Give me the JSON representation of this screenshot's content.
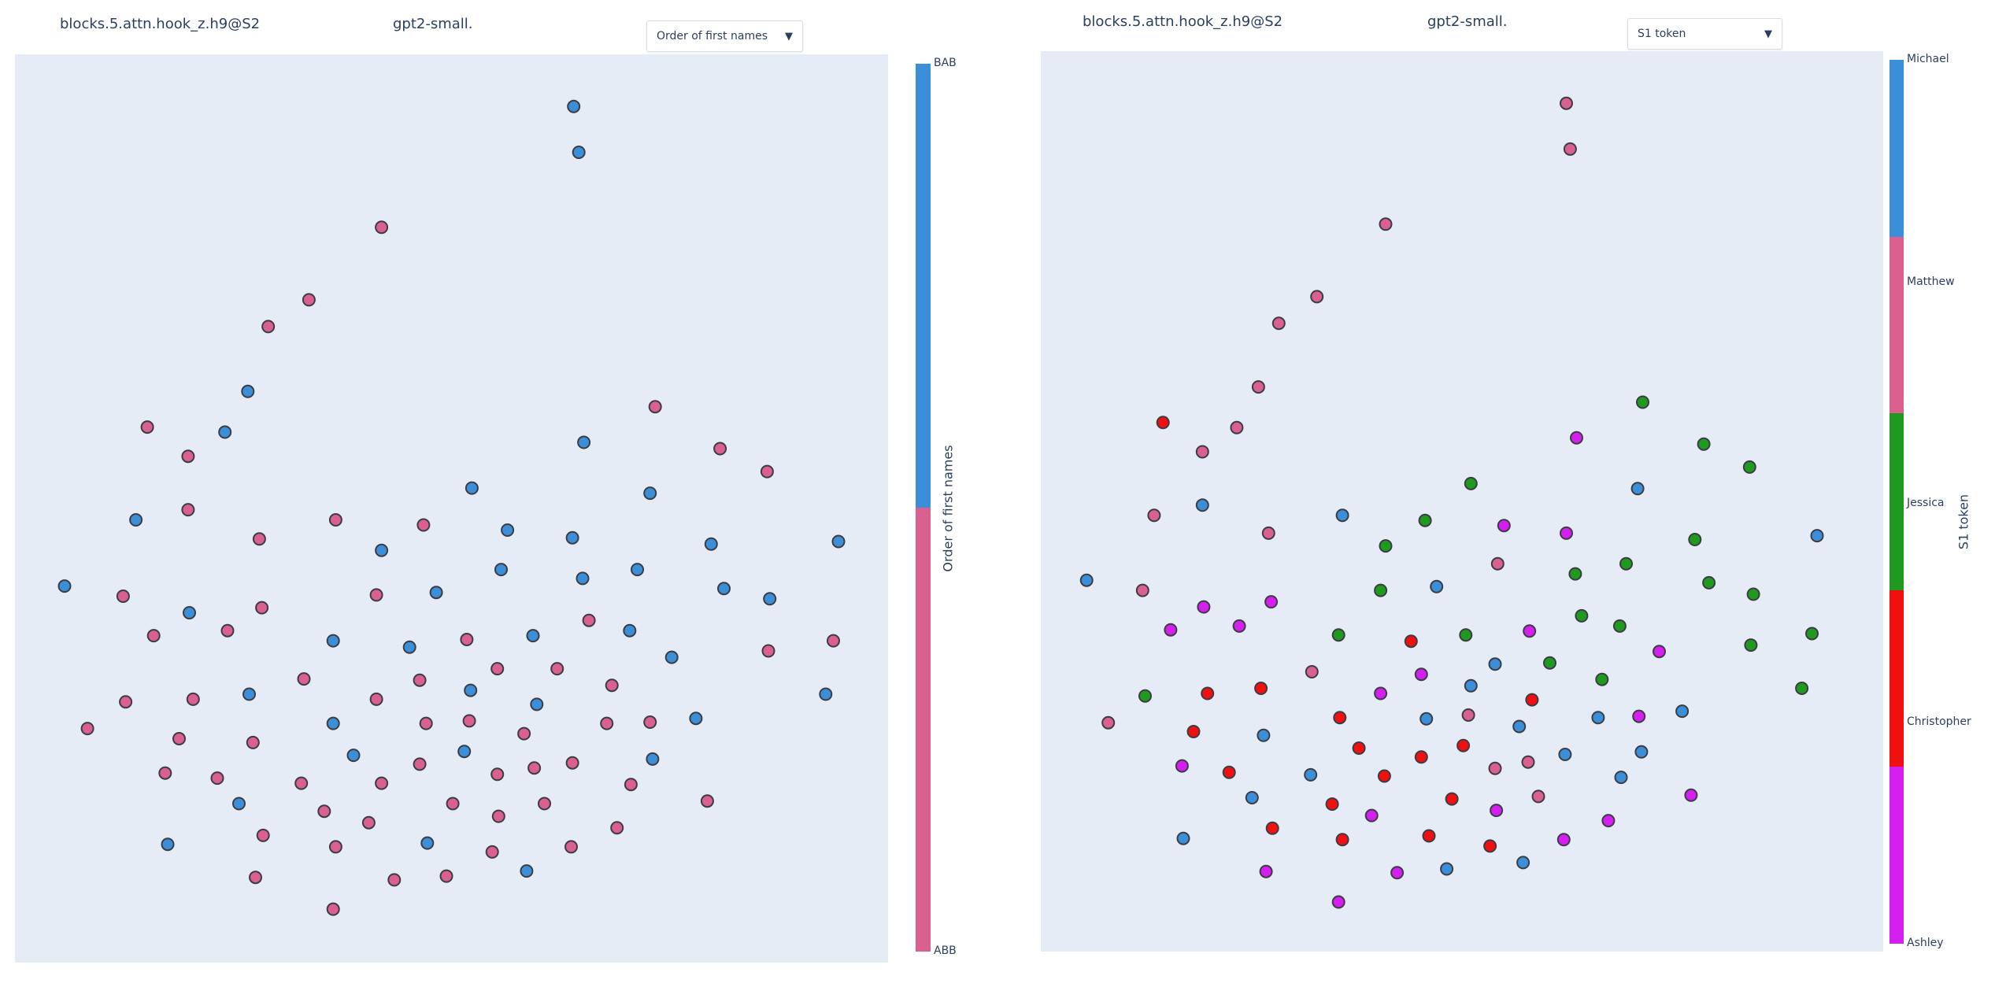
{
  "chart_data": [
    {
      "type": "scatter",
      "title": "blocks.5.attn.hook_z.h9@S2",
      "model": "gpt2-small.",
      "dropdown": {
        "selected": "Order of first names"
      },
      "colorbar": {
        "title": "Order of first names",
        "categories": [
          "BAB",
          "ABB"
        ],
        "colors": {
          "BAB": "#3b8fd9",
          "ABB": "#d9608f"
        }
      },
      "xlim": [
        12,
        698
      ],
      "ylim": [
        43,
        757
      ],
      "y_inverted": true,
      "grid": false,
      "points": [
        [
          451,
          84,
          "BAB"
        ],
        [
          455,
          120,
          "BAB"
        ],
        [
          300,
          179,
          "ABB"
        ],
        [
          243,
          236,
          "ABB"
        ],
        [
          211,
          257,
          "ABB"
        ],
        [
          195,
          308,
          "BAB"
        ],
        [
          116,
          336,
          "ABB"
        ],
        [
          177,
          340,
          "BAB"
        ],
        [
          148,
          359,
          "ABB"
        ],
        [
          515,
          320,
          "ABB"
        ],
        [
          459,
          348,
          "BAB"
        ],
        [
          566,
          353,
          "ABB"
        ],
        [
          603,
          371,
          "ABB"
        ],
        [
          371,
          384,
          "BAB"
        ],
        [
          511,
          388,
          "BAB"
        ],
        [
          107,
          409,
          "BAB"
        ],
        [
          148,
          401,
          "ABB"
        ],
        [
          264,
          409,
          "ABB"
        ],
        [
          333,
          413,
          "ABB"
        ],
        [
          399,
          417,
          "BAB"
        ],
        [
          204,
          424,
          "ABB"
        ],
        [
          300,
          433,
          "BAB"
        ],
        [
          450,
          423,
          "BAB"
        ],
        [
          559,
          428,
          "BAB"
        ],
        [
          659,
          426,
          "BAB"
        ],
        [
          394,
          448,
          "BAB"
        ],
        [
          501,
          448,
          "BAB"
        ],
        [
          458,
          455,
          "BAB"
        ],
        [
          51,
          461,
          "BAB"
        ],
        [
          97,
          469,
          "ABB"
        ],
        [
          296,
          468,
          "ABB"
        ],
        [
          343,
          466,
          "BAB"
        ],
        [
          569,
          463,
          "BAB"
        ],
        [
          605,
          471,
          "BAB"
        ],
        [
          149,
          482,
          "BAB"
        ],
        [
          206,
          478,
          "ABB"
        ],
        [
          121,
          500,
          "ABB"
        ],
        [
          179,
          496,
          "ABB"
        ],
        [
          463,
          488,
          "ABB"
        ],
        [
          495,
          496,
          "BAB"
        ],
        [
          262,
          504,
          "BAB"
        ],
        [
          322,
          509,
          "BAB"
        ],
        [
          367,
          503,
          "ABB"
        ],
        [
          419,
          500,
          "BAB"
        ],
        [
          604,
          512,
          "ABB"
        ],
        [
          655,
          504,
          "ABB"
        ],
        [
          528,
          517,
          "BAB"
        ],
        [
          391,
          526,
          "ABB"
        ],
        [
          438,
          526,
          "ABB"
        ],
        [
          239,
          534,
          "ABB"
        ],
        [
          330,
          535,
          "ABB"
        ],
        [
          481,
          539,
          "ABB"
        ],
        [
          196,
          546,
          "BAB"
        ],
        [
          152,
          550,
          "ABB"
        ],
        [
          99,
          552,
          "ABB"
        ],
        [
          296,
          550,
          "ABB"
        ],
        [
          370,
          543,
          "BAB"
        ],
        [
          422,
          554,
          "BAB"
        ],
        [
          649,
          546,
          "BAB"
        ],
        [
          547,
          565,
          "BAB"
        ],
        [
          69,
          573,
          "ABB"
        ],
        [
          262,
          569,
          "BAB"
        ],
        [
          335,
          569,
          "ABB"
        ],
        [
          369,
          567,
          "ABB"
        ],
        [
          477,
          569,
          "ABB"
        ],
        [
          511,
          568,
          "ABB"
        ],
        [
          141,
          581,
          "ABB"
        ],
        [
          199,
          584,
          "ABB"
        ],
        [
          412,
          577,
          "ABB"
        ],
        [
          278,
          594,
          "BAB"
        ],
        [
          365,
          591,
          "BAB"
        ],
        [
          450,
          600,
          "ABB"
        ],
        [
          513,
          597,
          "BAB"
        ],
        [
          330,
          601,
          "ABB"
        ],
        [
          420,
          604,
          "ABB"
        ],
        [
          130,
          608,
          "ABB"
        ],
        [
          171,
          612,
          "ABB"
        ],
        [
          237,
          616,
          "ABB"
        ],
        [
          300,
          616,
          "ABB"
        ],
        [
          391,
          609,
          "ABB"
        ],
        [
          496,
          617,
          "ABB"
        ],
        [
          188,
          632,
          "BAB"
        ],
        [
          356,
          632,
          "ABB"
        ],
        [
          428,
          632,
          "ABB"
        ],
        [
          556,
          630,
          "ABB"
        ],
        [
          255,
          638,
          "ABB"
        ],
        [
          392,
          642,
          "ABB"
        ],
        [
          290,
          647,
          "ABB"
        ],
        [
          207,
          657,
          "ABB"
        ],
        [
          485,
          651,
          "ABB"
        ],
        [
          132,
          664,
          "BAB"
        ],
        [
          264,
          666,
          "ABB"
        ],
        [
          336,
          663,
          "BAB"
        ],
        [
          387,
          670,
          "ABB"
        ],
        [
          449,
          666,
          "ABB"
        ],
        [
          414,
          685,
          "BAB"
        ],
        [
          201,
          690,
          "ABB"
        ],
        [
          310,
          692,
          "ABB"
        ],
        [
          351,
          689,
          "ABB"
        ],
        [
          262,
          715,
          "ABB"
        ]
      ]
    },
    {
      "type": "scatter",
      "title": "blocks.5.attn.hook_z.h9@S2",
      "model": "gpt2-small.",
      "dropdown": {
        "selected": "S1 token"
      },
      "colorbar": {
        "title": "S1 token",
        "categories": [
          "Michael",
          "Matthew",
          "Jessica",
          "Christopher",
          "Ashley"
        ],
        "colors": {
          "Michael": "#3b8fd9",
          "Matthew": "#d9608f",
          "Jessica": "#1f9a1f",
          "Christopher": "#f01010",
          "Ashley": "#d51ef0"
        }
      },
      "xlim": [
        818,
        1480
      ],
      "ylim": [
        40,
        748
      ],
      "y_inverted": true,
      "grid": false,
      "points": [
        [
          1231,
          81,
          "Matthew"
        ],
        [
          1234,
          117,
          "Matthew"
        ],
        [
          1089,
          176,
          "Matthew"
        ],
        [
          1035,
          233,
          "Matthew"
        ],
        [
          1005,
          254,
          "Matthew"
        ],
        [
          989,
          304,
          "Matthew"
        ],
        [
          914,
          332,
          "Christopher"
        ],
        [
          972,
          336,
          "Matthew"
        ],
        [
          945,
          355,
          "Matthew"
        ],
        [
          1291,
          316,
          "Jessica"
        ],
        [
          1239,
          344,
          "Ashley"
        ],
        [
          1339,
          349,
          "Jessica"
        ],
        [
          1375,
          367,
          "Jessica"
        ],
        [
          1156,
          380,
          "Jessica"
        ],
        [
          1287,
          384,
          "Michael"
        ],
        [
          907,
          405,
          "Matthew"
        ],
        [
          945,
          397,
          "Michael"
        ],
        [
          1055,
          405,
          "Michael"
        ],
        [
          1120,
          409,
          "Jessica"
        ],
        [
          1182,
          413,
          "Ashley"
        ],
        [
          997,
          419,
          "Matthew"
        ],
        [
          1231,
          419,
          "Ashley"
        ],
        [
          1332,
          424,
          "Jessica"
        ],
        [
          1428,
          421,
          "Michael"
        ],
        [
          1089,
          429,
          "Jessica"
        ],
        [
          1177,
          443,
          "Matthew"
        ],
        [
          1278,
          443,
          "Jessica"
        ],
        [
          1238,
          451,
          "Jessica"
        ],
        [
          854,
          456,
          "Michael"
        ],
        [
          898,
          464,
          "Matthew"
        ],
        [
          1085,
          464,
          "Jessica"
        ],
        [
          1129,
          461,
          "Michael"
        ],
        [
          1343,
          458,
          "Jessica"
        ],
        [
          1378,
          467,
          "Jessica"
        ],
        [
          946,
          477,
          "Ashley"
        ],
        [
          999,
          473,
          "Ashley"
        ],
        [
          920,
          495,
          "Ashley"
        ],
        [
          974,
          492,
          "Ashley"
        ],
        [
          1243,
          484,
          "Jessica"
        ],
        [
          1273,
          492,
          "Jessica"
        ],
        [
          1052,
          499,
          "Jessica"
        ],
        [
          1109,
          504,
          "Christopher"
        ],
        [
          1152,
          499,
          "Jessica"
        ],
        [
          1202,
          496,
          "Ashley"
        ],
        [
          1376,
          507,
          "Jessica"
        ],
        [
          1424,
          498,
          "Jessica"
        ],
        [
          1304,
          512,
          "Ashley"
        ],
        [
          1175,
          522,
          "Michael"
        ],
        [
          1218,
          521,
          "Jessica"
        ],
        [
          1031,
          528,
          "Matthew"
        ],
        [
          1117,
          530,
          "Ashley"
        ],
        [
          1259,
          534,
          "Jessica"
        ],
        [
          1156,
          539,
          "Michael"
        ],
        [
          1416,
          541,
          "Jessica"
        ],
        [
          949,
          545,
          "Christopher"
        ],
        [
          991,
          541,
          "Christopher"
        ],
        [
          900,
          547,
          "Jessica"
        ],
        [
          1085,
          545,
          "Ashley"
        ],
        [
          1204,
          550,
          "Christopher"
        ],
        [
          1053,
          564,
          "Christopher"
        ],
        [
          1121,
          565,
          "Michael"
        ],
        [
          1154,
          562,
          "Matthew"
        ],
        [
          1256,
          564,
          "Michael"
        ],
        [
          1288,
          563,
          "Ashley"
        ],
        [
          1322,
          559,
          "Michael"
        ],
        [
          871,
          568,
          "Matthew"
        ],
        [
          938,
          575,
          "Christopher"
        ],
        [
          993,
          578,
          "Michael"
        ],
        [
          1194,
          571,
          "Michael"
        ],
        [
          1068,
          588,
          "Christopher"
        ],
        [
          1150,
          586,
          "Christopher"
        ],
        [
          1117,
          595,
          "Christopher"
        ],
        [
          1290,
          591,
          "Michael"
        ],
        [
          1230,
          593,
          "Michael"
        ],
        [
          1088,
          610,
          "Christopher"
        ],
        [
          1201,
          599,
          "Matthew"
        ],
        [
          1175,
          604,
          "Matthew"
        ],
        [
          929,
          602,
          "Ashley"
        ],
        [
          966,
          607,
          "Christopher"
        ],
        [
          1030,
          609,
          "Michael"
        ],
        [
          1274,
          611,
          "Michael"
        ],
        [
          1141,
          628,
          "Christopher"
        ],
        [
          1209,
          626,
          "Matthew"
        ],
        [
          984,
          627,
          "Michael"
        ],
        [
          1047,
          632,
          "Christopher"
        ],
        [
          1329,
          625,
          "Ashley"
        ],
        [
          1176,
          637,
          "Ashley"
        ],
        [
          1078,
          641,
          "Ashley"
        ],
        [
          1264,
          645,
          "Ashley"
        ],
        [
          1000,
          651,
          "Christopher"
        ],
        [
          930,
          659,
          "Michael"
        ],
        [
          1055,
          660,
          "Christopher"
        ],
        [
          1123,
          657,
          "Christopher"
        ],
        [
          1171,
          665,
          "Christopher"
        ],
        [
          1229,
          660,
          "Ashley"
        ],
        [
          1197,
          678,
          "Michael"
        ],
        [
          995,
          685,
          "Ashley"
        ],
        [
          1098,
          686,
          "Ashley"
        ],
        [
          1137,
          683,
          "Michael"
        ],
        [
          1052,
          709,
          "Ashley"
        ]
      ]
    }
  ]
}
